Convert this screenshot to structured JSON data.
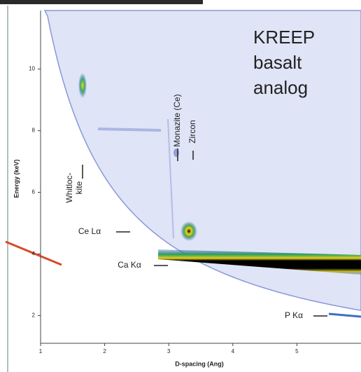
{
  "chart_data": {
    "type": "spectrum-map",
    "title_lines": [
      "KREEP",
      "basalt",
      "analog"
    ],
    "x_label": "D-spacing (Ang)",
    "y_label": "Energy (keV)",
    "xlim": [
      1,
      6
    ],
    "ylim": [
      1.1,
      11.9
    ],
    "xticks": [
      1,
      2,
      3,
      4,
      5
    ],
    "yticks": [
      2,
      4,
      6,
      8,
      10
    ],
    "annotations": [
      "Monazite (Ce)",
      "Zircon",
      "Whitloc-",
      "kite",
      "Ce Lα",
      "Ca Kα",
      "P Kα"
    ]
  }
}
